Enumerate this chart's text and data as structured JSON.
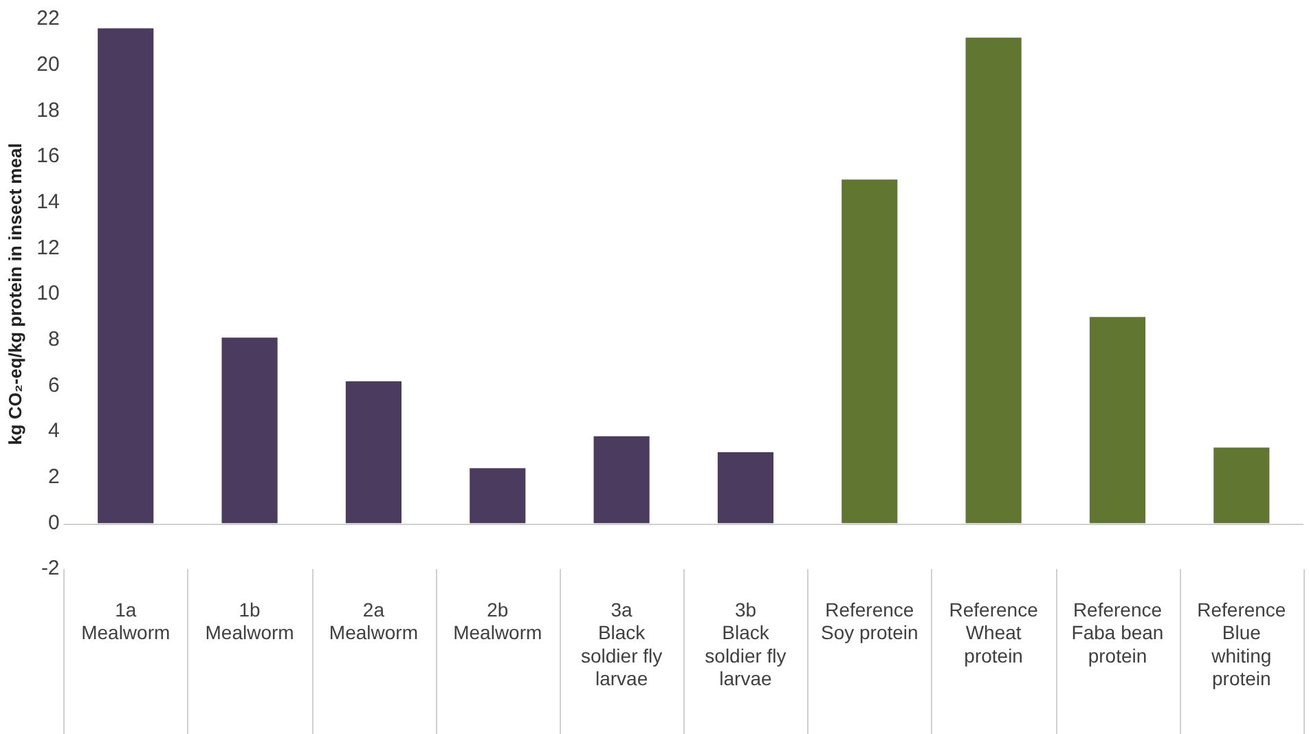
{
  "chart_data": {
    "type": "bar",
    "ylabel": "kg CO₂-eq/kg protein in insect meal",
    "categories": [
      "1a\nMealworm",
      "1b\nMealworm",
      "2a\nMealworm",
      "2b\nMealworm",
      "3a\nBlack\nsoldier fly\nlarvae",
      "3b\nBlack\nsoldier fly\nlarvae",
      "Reference\nSoy protein",
      "Reference\nWheat\nprotein",
      "Reference\nFaba bean\nprotein",
      "Reference\nBlue\nwhiting\nprotein"
    ],
    "values": [
      21.6,
      8.1,
      6.2,
      2.4,
      3.8,
      3.1,
      15.0,
      21.2,
      9.0,
      3.3
    ],
    "colors": [
      "#4a3b5f",
      "#4a3b5f",
      "#4a3b5f",
      "#4a3b5f",
      "#4a3b5f",
      "#4a3b5f",
      "#617631",
      "#617631",
      "#617631",
      "#617631"
    ],
    "ylim": [
      -2,
      22
    ],
    "yticks": [
      -2,
      0,
      2,
      4,
      6,
      8,
      10,
      12,
      14,
      16,
      18,
      20,
      22
    ],
    "grid": false,
    "legend": false,
    "ref_lines": [
      {
        "axis": "y",
        "value": 0,
        "color": "#d0d0d0"
      }
    ]
  }
}
